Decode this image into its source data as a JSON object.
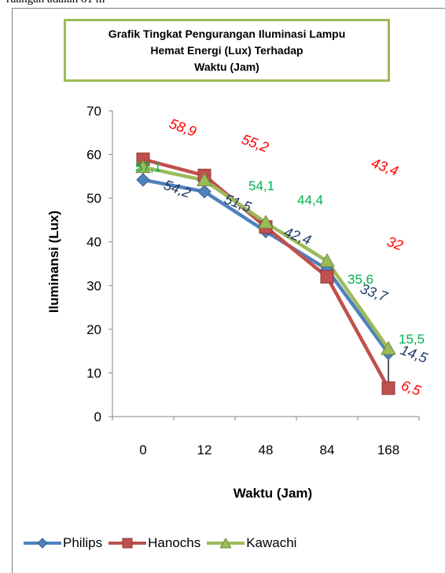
{
  "page_text": "ruangan adalah 81 m",
  "chart_data": {
    "type": "line",
    "title_lines": [
      "Grafik Tingkat Pengurangan Iluminasi Lampu",
      "Hemat Energi (Lux) Terhadap",
      "Waktu (Jam)"
    ],
    "xlabel": "Waktu (Jam)",
    "ylabel": "Iluminansi (Lux)",
    "categories": [
      "0",
      "12",
      "48",
      "84",
      "168"
    ],
    "ylim": [
      0,
      70
    ],
    "yticks": [
      "0",
      "10",
      "20",
      "30",
      "40",
      "50",
      "60",
      "70"
    ],
    "grid": false,
    "legend_position": "bottom",
    "series": [
      {
        "name": "Philips",
        "color": "#4f81bd",
        "label_color": "#1f3864",
        "marker": "diamond",
        "values": [
          54.2,
          51.5,
          42.4,
          33.7,
          14.5
        ],
        "data_labels": [
          "54,2",
          "51,5",
          "42,4",
          "33,7",
          "14,5"
        ]
      },
      {
        "name": "Hanochs",
        "color": "#c0504d",
        "label_color": "#ff0000",
        "marker": "square",
        "values": [
          58.9,
          55.2,
          43.4,
          32,
          6.5
        ],
        "data_labels": [
          "58,9",
          "55,2",
          "43,4",
          "32",
          "6,5"
        ]
      },
      {
        "name": "Kawachi",
        "color": "#9bbb59",
        "label_color": "#00b050",
        "marker": "triangle",
        "values": [
          57.1,
          54.1,
          44.4,
          35.6,
          15.5
        ],
        "data_labels": [
          "57,1",
          "54,1",
          "44,4",
          "35,6",
          "15,5"
        ]
      }
    ]
  }
}
